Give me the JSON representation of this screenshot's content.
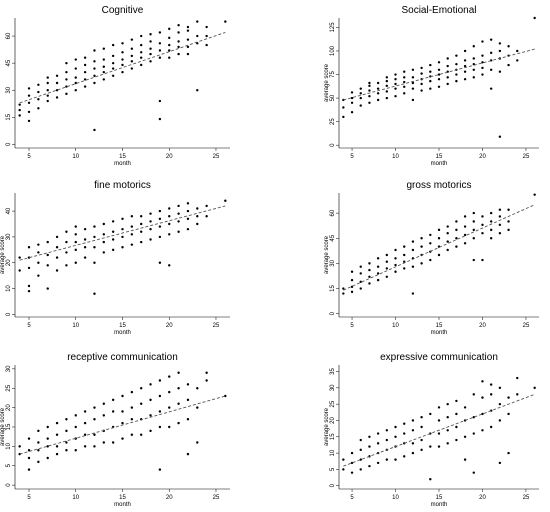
{
  "chart_data": [
    {
      "type": "scatter",
      "title": "Cognitive",
      "xlabel": "month",
      "ylabel": "",
      "xlim": [
        3.5,
        26.5
      ],
      "ylim": [
        -2,
        70
      ],
      "xticks": [
        5,
        10,
        15,
        20,
        25
      ],
      "yticks": [
        0,
        15,
        30,
        45,
        60
      ],
      "trend": {
        "x": [
          4,
          26
        ],
        "y": [
          23,
          62
        ]
      },
      "points": {
        "x": [
          4,
          4,
          4,
          5,
          5,
          5,
          5,
          5,
          6,
          6,
          6,
          6,
          7,
          7,
          7,
          7,
          7,
          8,
          8,
          8,
          8,
          9,
          9,
          9,
          9,
          9,
          10,
          10,
          10,
          10,
          10,
          11,
          11,
          11,
          11,
          11,
          12,
          12,
          12,
          12,
          12,
          12,
          13,
          13,
          13,
          13,
          13,
          14,
          14,
          14,
          14,
          14,
          15,
          15,
          15,
          15,
          15,
          16,
          16,
          16,
          16,
          16,
          17,
          17,
          17,
          17,
          17,
          18,
          18,
          18,
          18,
          18,
          19,
          19,
          19,
          19,
          19,
          19,
          20,
          20,
          20,
          20,
          20,
          21,
          21,
          21,
          21,
          21,
          22,
          22,
          22,
          22,
          22,
          23,
          23,
          23,
          23,
          24,
          24,
          24,
          26
        ],
        "y": [
          16,
          19,
          22,
          13,
          18,
          23,
          27,
          31,
          20,
          25,
          29,
          33,
          24,
          27,
          30,
          34,
          37,
          26,
          30,
          34,
          38,
          28,
          32,
          36,
          40,
          45,
          30,
          34,
          37,
          42,
          47,
          32,
          36,
          40,
          44,
          48,
          8,
          34,
          38,
          42,
          46,
          52,
          36,
          40,
          43,
          47,
          53,
          38,
          42,
          45,
          49,
          55,
          40,
          44,
          47,
          51,
          56,
          42,
          46,
          49,
          53,
          58,
          44,
          48,
          51,
          55,
          60,
          46,
          50,
          53,
          57,
          61,
          14,
          24,
          48,
          52,
          56,
          62,
          48,
          52,
          55,
          59,
          64,
          50,
          54,
          57,
          62,
          66,
          50,
          54,
          58,
          63,
          65,
          30,
          56,
          60,
          68,
          55,
          60,
          65,
          68
        ]
      }
    },
    {
      "type": "scatter",
      "title": "Social-Emotional",
      "xlabel": "month",
      "ylabel": "average score",
      "xlim": [
        3.5,
        26.5
      ],
      "ylim": [
        -3,
        135
      ],
      "xticks": [
        5,
        10,
        15,
        20,
        25
      ],
      "yticks": [
        0,
        25,
        50,
        75,
        100,
        125
      ],
      "trend": {
        "x": [
          4,
          26
        ],
        "y": [
          48,
          102
        ]
      },
      "points": {
        "x": [
          4,
          4,
          4,
          5,
          5,
          5,
          5,
          6,
          6,
          6,
          6,
          7,
          7,
          7,
          7,
          7,
          8,
          8,
          8,
          8,
          9,
          9,
          9,
          9,
          9,
          10,
          10,
          10,
          10,
          10,
          11,
          11,
          11,
          11,
          11,
          12,
          12,
          12,
          12,
          12,
          13,
          13,
          13,
          13,
          13,
          14,
          14,
          14,
          14,
          14,
          15,
          15,
          15,
          15,
          15,
          16,
          16,
          16,
          16,
          16,
          17,
          17,
          17,
          17,
          17,
          18,
          18,
          18,
          18,
          18,
          19,
          19,
          19,
          19,
          19,
          20,
          20,
          20,
          20,
          20,
          21,
          21,
          21,
          21,
          21,
          22,
          22,
          22,
          22,
          22,
          23,
          23,
          23,
          24,
          24,
          26
        ],
        "y": [
          30,
          40,
          48,
          35,
          45,
          50,
          56,
          42,
          50,
          55,
          60,
          45,
          52,
          58,
          63,
          66,
          48,
          55,
          60,
          66,
          50,
          57,
          63,
          68,
          72,
          52,
          60,
          65,
          70,
          75,
          55,
          62,
          67,
          72,
          78,
          48,
          60,
          66,
          72,
          80,
          58,
          65,
          70,
          76,
          82,
          60,
          68,
          73,
          78,
          85,
          62,
          70,
          75,
          80,
          88,
          65,
          72,
          78,
          84,
          92,
          68,
          75,
          80,
          86,
          95,
          70,
          78,
          84,
          90,
          100,
          72,
          80,
          86,
          92,
          105,
          75,
          82,
          88,
          95,
          110,
          60,
          80,
          90,
          98,
          112,
          9,
          78,
          92,
          100,
          108,
          85,
          95,
          105,
          90,
          100,
          135
        ]
      }
    },
    {
      "type": "scatter",
      "title": "fine motorics",
      "xlabel": "month",
      "ylabel": "average score",
      "xlim": [
        3.5,
        26.5
      ],
      "ylim": [
        -1,
        47
      ],
      "xticks": [
        5,
        10,
        15,
        20,
        25
      ],
      "yticks": [
        0,
        10,
        20,
        30,
        40
      ],
      "trend": {
        "x": [
          4,
          26
        ],
        "y": [
          21,
          42
        ]
      },
      "points": {
        "x": [
          4,
          4,
          5,
          5,
          5,
          5,
          5,
          6,
          6,
          6,
          6,
          7,
          7,
          7,
          7,
          8,
          8,
          8,
          8,
          9,
          9,
          9,
          9,
          10,
          10,
          10,
          10,
          10,
          11,
          11,
          11,
          11,
          12,
          12,
          12,
          12,
          12,
          13,
          13,
          13,
          13,
          14,
          14,
          14,
          14,
          15,
          15,
          15,
          15,
          16,
          16,
          16,
          16,
          17,
          17,
          17,
          17,
          18,
          18,
          18,
          18,
          19,
          19,
          19,
          19,
          19,
          20,
          20,
          20,
          20,
          20,
          21,
          21,
          21,
          21,
          22,
          22,
          22,
          22,
          23,
          23,
          23,
          24,
          24,
          26
        ],
        "y": [
          17,
          22,
          9,
          11,
          18,
          22,
          26,
          15,
          20,
          24,
          27,
          10,
          19,
          23,
          28,
          17,
          22,
          26,
          30,
          19,
          24,
          28,
          32,
          20,
          25,
          28,
          31,
          34,
          22,
          26,
          29,
          33,
          8,
          20,
          26,
          30,
          34,
          24,
          28,
          31,
          35,
          25,
          29,
          32,
          36,
          26,
          30,
          33,
          37,
          27,
          31,
          34,
          38,
          28,
          32,
          35,
          38,
          29,
          33,
          36,
          39,
          20,
          30,
          34,
          37,
          40,
          19,
          31,
          35,
          38,
          41,
          32,
          36,
          39,
          42,
          33,
          37,
          40,
          43,
          35,
          38,
          41,
          38,
          42,
          44
        ]
      }
    },
    {
      "type": "scatter",
      "title": "gross motorics",
      "xlabel": "month",
      "ylabel": "average score",
      "xlim": [
        3.5,
        26.5
      ],
      "ylim": [
        -2,
        72
      ],
      "xticks": [
        5,
        10,
        15,
        20,
        25
      ],
      "yticks": [
        0,
        15,
        30,
        45,
        60
      ],
      "trend": {
        "x": [
          4,
          26
        ],
        "y": [
          14,
          65
        ]
      },
      "points": {
        "x": [
          4,
          4,
          5,
          5,
          5,
          5,
          6,
          6,
          6,
          6,
          7,
          7,
          7,
          7,
          8,
          8,
          8,
          8,
          9,
          9,
          9,
          9,
          10,
          10,
          10,
          10,
          11,
          11,
          11,
          11,
          12,
          12,
          12,
          12,
          12,
          13,
          13,
          13,
          13,
          14,
          14,
          14,
          14,
          15,
          15,
          15,
          15,
          16,
          16,
          16,
          16,
          17,
          17,
          17,
          17,
          18,
          18,
          18,
          18,
          19,
          19,
          19,
          19,
          19,
          20,
          20,
          20,
          20,
          21,
          21,
          21,
          21,
          22,
          22,
          22,
          22,
          23,
          23,
          23,
          26
        ],
        "y": [
          12,
          15,
          13,
          16,
          20,
          25,
          15,
          19,
          24,
          28,
          18,
          22,
          26,
          30,
          20,
          24,
          28,
          33,
          22,
          27,
          31,
          35,
          25,
          29,
          33,
          38,
          27,
          31,
          35,
          40,
          12,
          28,
          33,
          38,
          43,
          30,
          35,
          40,
          45,
          32,
          37,
          42,
          47,
          35,
          40,
          45,
          50,
          38,
          43,
          48,
          52,
          40,
          45,
          50,
          55,
          42,
          47,
          52,
          58,
          32,
          45,
          50,
          55,
          60,
          32,
          48,
          53,
          58,
          45,
          50,
          55,
          60,
          48,
          53,
          58,
          62,
          50,
          55,
          62,
          71
        ]
      }
    },
    {
      "type": "scatter",
      "title": "receptive communication",
      "xlabel": "month",
      "ylabel": "average score",
      "xlim": [
        3.5,
        26.5
      ],
      "ylim": [
        -1,
        31
      ],
      "xticks": [
        5,
        10,
        15,
        20,
        25
      ],
      "yticks": [
        0,
        5,
        10,
        15,
        20,
        25,
        30
      ],
      "trend": {
        "x": [
          4,
          26
        ],
        "y": [
          8,
          23
        ]
      },
      "points": {
        "x": [
          4,
          4,
          5,
          5,
          5,
          5,
          6,
          6,
          6,
          6,
          7,
          7,
          7,
          7,
          8,
          8,
          8,
          8,
          9,
          9,
          9,
          9,
          10,
          10,
          10,
          10,
          11,
          11,
          11,
          11,
          12,
          12,
          12,
          12,
          13,
          13,
          13,
          13,
          14,
          14,
          14,
          14,
          15,
          15,
          15,
          15,
          16,
          16,
          16,
          16,
          17,
          17,
          17,
          17,
          18,
          18,
          18,
          18,
          19,
          19,
          19,
          19,
          19,
          20,
          20,
          20,
          20,
          21,
          21,
          21,
          21,
          22,
          22,
          22,
          22,
          23,
          23,
          23,
          24,
          24,
          26
        ],
        "y": [
          8,
          10,
          4,
          7,
          9,
          12,
          6,
          9,
          11,
          14,
          7,
          10,
          12,
          15,
          8,
          10,
          13,
          16,
          9,
          11,
          14,
          17,
          9,
          12,
          15,
          18,
          10,
          13,
          16,
          19,
          10,
          13,
          17,
          20,
          11,
          14,
          18,
          21,
          11,
          15,
          19,
          22,
          12,
          16,
          19,
          23,
          13,
          17,
          20,
          24,
          13,
          17,
          21,
          25,
          14,
          18,
          22,
          26,
          4,
          15,
          19,
          23,
          27,
          15,
          20,
          24,
          28,
          16,
          21,
          25,
          29,
          8,
          17,
          22,
          26,
          11,
          20,
          25,
          27,
          29,
          23
        ]
      }
    },
    {
      "type": "scatter",
      "title": "expressive communication",
      "xlabel": "month",
      "ylabel": "average score",
      "xlim": [
        3.5,
        26.5
      ],
      "ylim": [
        -1,
        37
      ],
      "xticks": [
        5,
        10,
        15,
        20,
        25
      ],
      "yticks": [
        0,
        5,
        10,
        15,
        20,
        25,
        30,
        35
      ],
      "trend": {
        "x": [
          4,
          26
        ],
        "y": [
          6,
          28
        ]
      },
      "points": {
        "x": [
          4,
          4,
          5,
          5,
          5,
          6,
          6,
          6,
          6,
          7,
          7,
          7,
          7,
          8,
          8,
          8,
          8,
          9,
          9,
          9,
          9,
          10,
          10,
          10,
          10,
          11,
          11,
          11,
          11,
          12,
          12,
          12,
          12,
          13,
          13,
          13,
          13,
          14,
          14,
          14,
          14,
          15,
          15,
          15,
          15,
          16,
          16,
          16,
          16,
          17,
          17,
          17,
          17,
          18,
          18,
          18,
          18,
          19,
          19,
          19,
          19,
          20,
          20,
          20,
          20,
          21,
          21,
          21,
          21,
          22,
          22,
          22,
          22,
          23,
          23,
          23,
          24,
          24,
          26
        ],
        "y": [
          5,
          8,
          4,
          7,
          10,
          5,
          8,
          11,
          14,
          6,
          9,
          12,
          15,
          7,
          10,
          13,
          16,
          8,
          11,
          14,
          17,
          8,
          12,
          15,
          18,
          9,
          13,
          16,
          19,
          10,
          13,
          17,
          20,
          11,
          14,
          18,
          21,
          2,
          12,
          16,
          22,
          12,
          16,
          20,
          24,
          13,
          17,
          21,
          25,
          14,
          18,
          22,
          26,
          8,
          15,
          20,
          24,
          4,
          16,
          21,
          28,
          17,
          22,
          27,
          32,
          18,
          23,
          28,
          31,
          7,
          20,
          25,
          30,
          10,
          22,
          27,
          33,
          28,
          30
        ]
      }
    }
  ]
}
